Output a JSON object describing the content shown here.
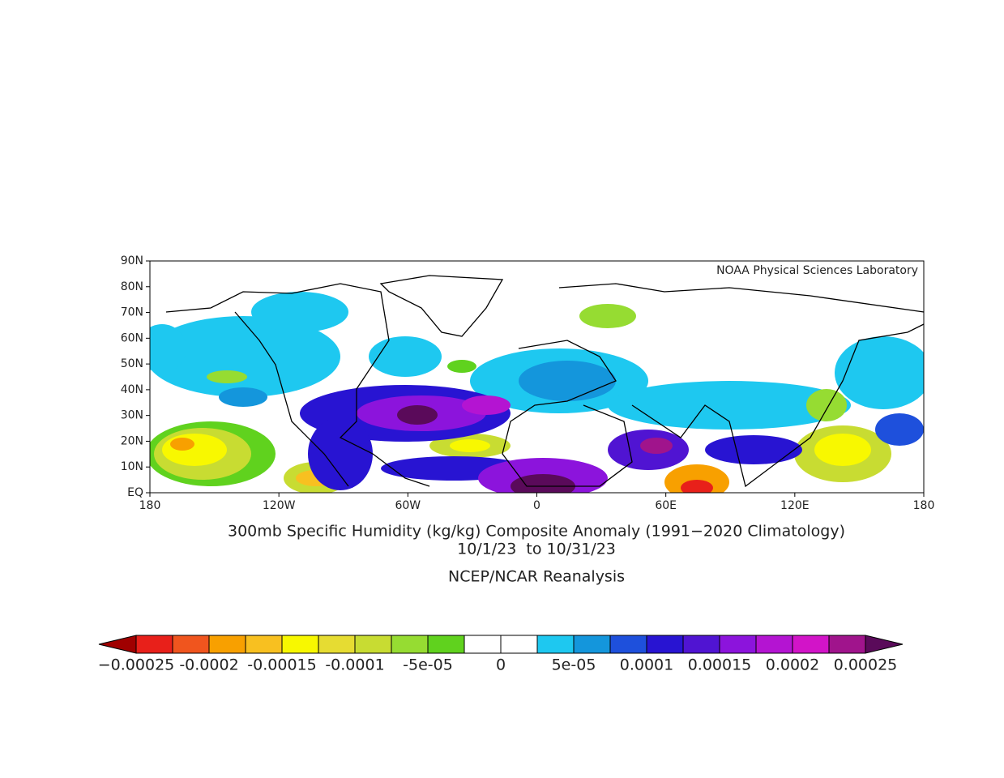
{
  "map": {
    "credit": "NOAA Physical Sciences Laboratory",
    "xlim": [
      -180,
      180
    ],
    "ylim": [
      0,
      90
    ],
    "yticks": [
      {
        "value": 0,
        "label": "EQ"
      },
      {
        "value": 10,
        "label": "10N"
      },
      {
        "value": 20,
        "label": "20N"
      },
      {
        "value": 30,
        "label": "30N"
      },
      {
        "value": 40,
        "label": "40N"
      },
      {
        "value": 50,
        "label": "50N"
      },
      {
        "value": 60,
        "label": "60N"
      },
      {
        "value": 70,
        "label": "70N"
      },
      {
        "value": 80,
        "label": "80N"
      },
      {
        "value": 90,
        "label": "90N"
      }
    ],
    "xticks": [
      {
        "value": -180,
        "label": "180"
      },
      {
        "value": -120,
        "label": "120W"
      },
      {
        "value": -60,
        "label": "60W"
      },
      0,
      {
        "value": 60,
        "label": "60E"
      },
      {
        "value": 120,
        "label": "120E"
      },
      180
    ]
  },
  "caption": {
    "line1": "300mb Specific Humidity (kg/kg) Composite Anomaly (1991−2020 Climatology)",
    "line2": "10/1/23  to 10/31/23",
    "line3": "NCEP/NCAR Reanalysis"
  },
  "colorbar": {
    "clim": [
      -0.00025,
      0.00025
    ],
    "ticks": [
      {
        "value": -0.00025,
        "label": "−0.00025"
      },
      {
        "value": -0.0002,
        "label": "-0.0002"
      },
      {
        "value": -0.00015,
        "label": "-0.00015"
      },
      {
        "value": -0.0001,
        "label": "-0.0001"
      },
      {
        "value": -5e-05,
        "label": "-5e-05"
      },
      0,
      {
        "value": 5e-05,
        "label": "5e-05"
      },
      {
        "value": 0.0001,
        "label": "0.0001"
      },
      {
        "value": 0.00015,
        "label": "0.00015"
      },
      {
        "value": 0.0002,
        "label": "0.0002"
      },
      {
        "value": 0.00025,
        "label": "0.00025"
      }
    ],
    "colors": [
      "#a00000",
      "#e8201a",
      "#f0551e",
      "#f8a000",
      "#f8c020",
      "#f8f800",
      "#e6dc32",
      "#c8dc32",
      "#96dc32",
      "#60d21e",
      "#ffffff",
      "#ffffff",
      "#1ec8f0",
      "#1496dc",
      "#1e50dc",
      "#2814d2",
      "#5014d2",
      "#8c14dc",
      "#b414d2",
      "#d214c8",
      "#a0148c",
      "#5a0a5a"
    ]
  }
}
